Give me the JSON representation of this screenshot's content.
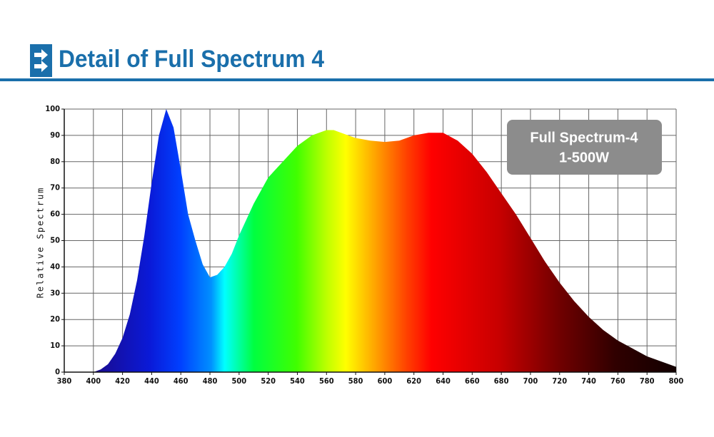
{
  "chart_data": {
    "type": "area",
    "title": "Detail of Full Spectrum 4",
    "y_label": "Relative Spectrum",
    "annotation": [
      "Full Spectrum-4",
      "1-500W"
    ],
    "x": [
      400,
      405,
      410,
      415,
      420,
      425,
      430,
      435,
      440,
      445,
      450,
      455,
      460,
      465,
      470,
      475,
      480,
      485,
      490,
      495,
      500,
      510,
      520,
      530,
      540,
      550,
      560,
      565,
      570,
      580,
      590,
      600,
      610,
      620,
      630,
      640,
      650,
      660,
      670,
      680,
      690,
      700,
      710,
      720,
      730,
      740,
      750,
      760,
      770,
      780,
      790,
      800
    ],
    "values": [
      0,
      1,
      3,
      7,
      13,
      22,
      35,
      52,
      72,
      90,
      100,
      93,
      77,
      60,
      50,
      41,
      36,
      37,
      40,
      45,
      52,
      64,
      74,
      80,
      86,
      90,
      92,
      92,
      91,
      89,
      88,
      87.5,
      88,
      90,
      91,
      91,
      88,
      83,
      76,
      68,
      60,
      51,
      42,
      34,
      27,
      21,
      16,
      12,
      9,
      6,
      4,
      2
    ],
    "xlim": [
      380,
      800
    ],
    "ylim": [
      0,
      100
    ],
    "xticks": [
      380,
      400,
      420,
      440,
      460,
      480,
      500,
      520,
      540,
      560,
      580,
      600,
      620,
      640,
      660,
      680,
      700,
      720,
      740,
      760,
      780,
      800
    ],
    "yticks": [
      0,
      10,
      20,
      30,
      40,
      50,
      60,
      70,
      80,
      90,
      100
    ],
    "grid": true
  }
}
